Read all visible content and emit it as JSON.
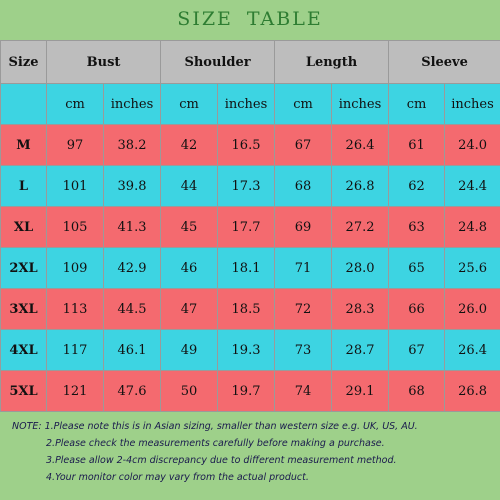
{
  "title": {
    "word1": "SIZE",
    "word2": "TABLE"
  },
  "headers": [
    "Size",
    "Bust",
    "Shoulder",
    "Length",
    "Sleeve"
  ],
  "units": [
    "cm",
    "inches",
    "cm",
    "inches",
    "cm",
    "inches",
    "cm",
    "inches"
  ],
  "rows": [
    {
      "size": "M",
      "values": [
        "97",
        "38.2",
        "42",
        "16.5",
        "67",
        "26.4",
        "61",
        "24.0"
      ]
    },
    {
      "size": "L",
      "values": [
        "101",
        "39.8",
        "44",
        "17.3",
        "68",
        "26.8",
        "62",
        "24.4"
      ]
    },
    {
      "size": "XL",
      "values": [
        "105",
        "41.3",
        "45",
        "17.7",
        "69",
        "27.2",
        "63",
        "24.8"
      ]
    },
    {
      "size": "2XL",
      "values": [
        "109",
        "42.9",
        "46",
        "18.1",
        "71",
        "28.0",
        "65",
        "25.6"
      ]
    },
    {
      "size": "3XL",
      "values": [
        "113",
        "44.5",
        "47",
        "18.5",
        "72",
        "28.3",
        "66",
        "26.0"
      ]
    },
    {
      "size": "4XL",
      "values": [
        "117",
        "46.1",
        "49",
        "19.3",
        "73",
        "28.7",
        "67",
        "26.4"
      ]
    },
    {
      "size": "5XL",
      "values": [
        "121",
        "47.6",
        "50",
        "19.7",
        "74",
        "29.1",
        "68",
        "26.8"
      ]
    }
  ],
  "notes": [
    "NOTE: 1.Please note this is in Asian sizing, smaller than western size e.g. UK, US, AU.",
    "2.Please check the measurements carefully before making a purchase.",
    "3.Please allow 2-4cm discrepancy due to different measurement method.",
    "4.Your monitor color may vary from the actual product."
  ],
  "colors": {
    "background": "#9ed08a",
    "header": "#bdbdbd",
    "cyan_row": "#3dd4e2",
    "pink_row": "#f46a6f",
    "title": "#2e7d32"
  }
}
